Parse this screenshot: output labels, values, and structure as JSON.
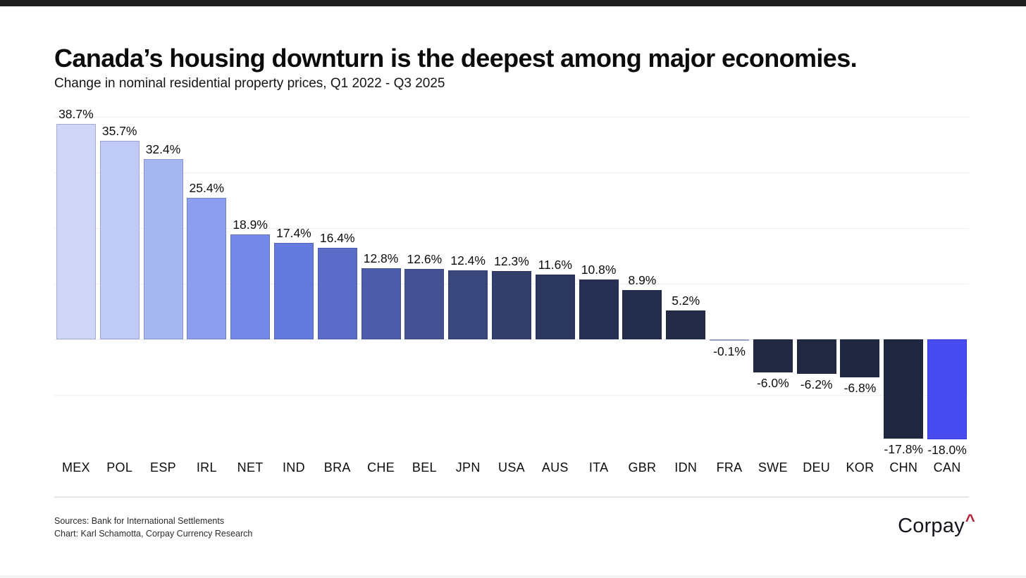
{
  "header": {
    "title": "Canada’s housing downturn is the deepest among major economies.",
    "subtitle": "Change in nominal residential property prices, Q1 2022 - Q3 2025"
  },
  "chart_data": {
    "type": "bar",
    "title": "Canada’s housing downturn is the deepest among major economies.",
    "subtitle": "Change in nominal residential property prices, Q1 2022 - Q3 2025",
    "xlabel": "",
    "ylabel": "",
    "categories": [
      "MEX",
      "POL",
      "ESP",
      "IRL",
      "NET",
      "IND",
      "BRA",
      "CHE",
      "BEL",
      "JPN",
      "USA",
      "AUS",
      "ITA",
      "GBR",
      "IDN",
      "FRA",
      "SWE",
      "DEU",
      "KOR",
      "CHN",
      "CAN"
    ],
    "values": [
      38.7,
      35.7,
      32.4,
      25.4,
      18.9,
      17.4,
      16.4,
      12.8,
      12.6,
      12.4,
      12.3,
      11.6,
      10.8,
      8.9,
      5.2,
      -0.1,
      -6.0,
      -6.2,
      -6.8,
      -17.8,
      -18.0
    ],
    "value_labels": [
      "38.7%",
      "35.7%",
      "32.4%",
      "25.4%",
      "18.9%",
      "17.4%",
      "16.4%",
      "12.8%",
      "12.6%",
      "12.4%",
      "12.3%",
      "11.6%",
      "10.8%",
      "8.9%",
      "5.2%",
      "-0.1%",
      "-6.0%",
      "-6.2%",
      "-6.8%",
      "-17.8%",
      "-18.0%"
    ],
    "bar_colors": [
      "#cfd6f8",
      "#bfcaf5",
      "#a6b6f1",
      "#8c9eee",
      "#7589e8",
      "#657ade",
      "#5a6cc8",
      "#4d5ca8",
      "#445293",
      "#3a477d",
      "#333f6b",
      "#2c375d",
      "#272f52",
      "#242c4b",
      "#222a46",
      "#b9c3ea",
      "#212943",
      "#202842",
      "#202841",
      "#1f2740",
      "#474bf0"
    ],
    "highlight_category": "CAN",
    "highlight_color": "#474bf0",
    "ylim": [
      -20,
      42
    ],
    "gridlines": [
      40,
      30,
      20,
      10,
      0,
      -10
    ],
    "gridline_color": "#ededf2",
    "grid": "on",
    "legend_position": "none"
  },
  "footer": {
    "source_line1": "Sources: Bank for International Settlements",
    "source_line2": "Chart: Karl Schamotta, Corpay Currency Research",
    "logo_text": "Corpay",
    "logo_caret": "^",
    "logo_caret_color": "#b51e38"
  }
}
